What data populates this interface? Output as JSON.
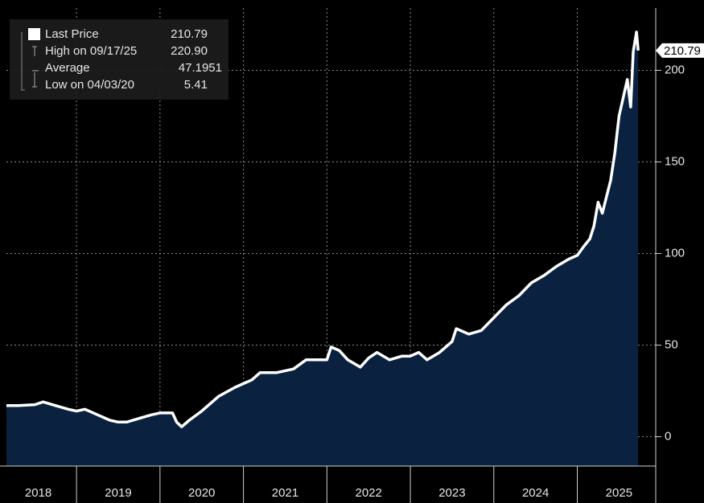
{
  "chart_data": {
    "type": "area",
    "series": [
      {
        "name": "Last Price",
        "color": "#ffffff",
        "fill": "#0a2240",
        "x": [
          2018.16,
          2018.3,
          2018.5,
          2018.6,
          2018.75,
          2018.9,
          2019.0,
          2019.1,
          2019.25,
          2019.4,
          2019.5,
          2019.6,
          2019.75,
          2019.9,
          2020.0,
          2020.15,
          2020.2,
          2020.26,
          2020.35,
          2020.5,
          2020.7,
          2020.9,
          2021.0,
          2021.1,
          2021.2,
          2021.4,
          2021.6,
          2021.75,
          2021.9,
          2022.0,
          2022.05,
          2022.15,
          2022.25,
          2022.4,
          2022.5,
          2022.6,
          2022.75,
          2022.9,
          2023.0,
          2023.1,
          2023.2,
          2023.35,
          2023.5,
          2023.55,
          2023.7,
          2023.85,
          2024.0,
          2024.15,
          2024.3,
          2024.45,
          2024.6,
          2024.75,
          2024.9,
          2025.0,
          2025.08,
          2025.15,
          2025.2,
          2025.25,
          2025.3,
          2025.4,
          2025.45,
          2025.5,
          2025.6,
          2025.64,
          2025.67,
          2025.71,
          2025.73
        ],
        "values": [
          17,
          17,
          17.5,
          19,
          17,
          15,
          14,
          15,
          12,
          9,
          8,
          8,
          10,
          12,
          13,
          13,
          8,
          5.41,
          9,
          14,
          22,
          27,
          29,
          31,
          35,
          35,
          37,
          42,
          42,
          42,
          49,
          47,
          42,
          38,
          43,
          46,
          42,
          44,
          44,
          46,
          42,
          46,
          52,
          59,
          56,
          58,
          65,
          72,
          77,
          84,
          88,
          93,
          97,
          99,
          104,
          108,
          115,
          128,
          122,
          140,
          155,
          175,
          195,
          180,
          210,
          220.9,
          210.79
        ]
      }
    ],
    "xlim": [
      2018.16,
      2025.94
    ],
    "xticks": [
      2018,
      2019,
      2020,
      2021,
      2022,
      2023,
      2024,
      2025
    ],
    "ylim": [
      -16,
      234
    ],
    "yticks": [
      0,
      50,
      100,
      150,
      200
    ],
    "grid": true,
    "stats": [
      {
        "name": "Last Price",
        "value": 210.79
      },
      {
        "name": "High on 09/17/25",
        "value": 220.9,
        "value_label": "220.90"
      },
      {
        "name": "Average",
        "value": 47.1951
      },
      {
        "name": "Low on 04/03/20",
        "value": 5.41
      }
    ]
  }
}
